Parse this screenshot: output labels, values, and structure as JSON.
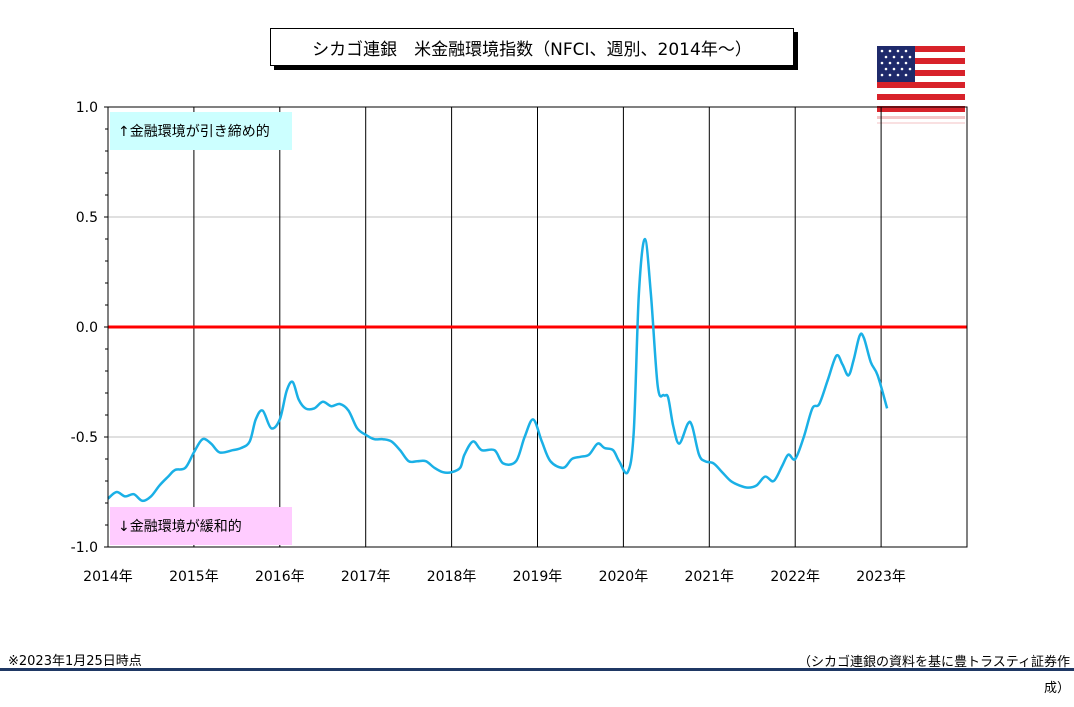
{
  "title": "シカゴ連銀　米金融環境指数（NFCI、週別、2014年～）",
  "annotations": {
    "upper": "↑金融環境が引き締め的",
    "lower": "↓金融環境が緩和的"
  },
  "footnote": "※2023年1月25日時点",
  "source": "（シカゴ連銀の資料を基に豊トラスティ証券作成）",
  "flag_icon": "us-flag-icon",
  "colors": {
    "series": "#1ab0e6",
    "zero_line": "#ff0000"
  },
  "chart_data": {
    "type": "line",
    "title": "シカゴ連銀　米金融環境指数（NFCI、週別、2014年～）",
    "xlim": [
      2014,
      2024
    ],
    "ylim": [
      -1.0,
      1.0
    ],
    "yticks": [
      "1.0",
      "0.5",
      "0.0",
      "-0.5",
      "-1.0"
    ],
    "ytick_values": [
      1.0,
      0.5,
      0.0,
      -0.5,
      -1.0
    ],
    "xticks": [
      "2014年",
      "2015年",
      "2016年",
      "2017年",
      "2018年",
      "2019年",
      "2020年",
      "2021年",
      "2022年",
      "2023年"
    ],
    "xtick_values": [
      2014,
      2015,
      2016,
      2017,
      2018,
      2019,
      2020,
      2021,
      2022,
      2023
    ],
    "grid": true,
    "reference_line": 0.0,
    "series": [
      {
        "points": [
          [
            2014.0,
            -0.78
          ],
          [
            2014.1,
            -0.75
          ],
          [
            2014.2,
            -0.77
          ],
          [
            2014.3,
            -0.76
          ],
          [
            2014.4,
            -0.79
          ],
          [
            2014.5,
            -0.77
          ],
          [
            2014.6,
            -0.72
          ],
          [
            2014.7,
            -0.68
          ],
          [
            2014.78,
            -0.65
          ],
          [
            2014.9,
            -0.64
          ],
          [
            2015.0,
            -0.57
          ],
          [
            2015.1,
            -0.51
          ],
          [
            2015.2,
            -0.53
          ],
          [
            2015.3,
            -0.57
          ],
          [
            2015.45,
            -0.56
          ],
          [
            2015.55,
            -0.55
          ],
          [
            2015.65,
            -0.52
          ],
          [
            2015.72,
            -0.42
          ],
          [
            2015.8,
            -0.38
          ],
          [
            2015.9,
            -0.46
          ],
          [
            2016.0,
            -0.42
          ],
          [
            2016.08,
            -0.29
          ],
          [
            2016.15,
            -0.25
          ],
          [
            2016.22,
            -0.33
          ],
          [
            2016.3,
            -0.37
          ],
          [
            2016.4,
            -0.37
          ],
          [
            2016.5,
            -0.34
          ],
          [
            2016.6,
            -0.36
          ],
          [
            2016.7,
            -0.35
          ],
          [
            2016.8,
            -0.38
          ],
          [
            2016.9,
            -0.46
          ],
          [
            2017.0,
            -0.49
          ],
          [
            2017.1,
            -0.51
          ],
          [
            2017.2,
            -0.51
          ],
          [
            2017.3,
            -0.52
          ],
          [
            2017.4,
            -0.56
          ],
          [
            2017.5,
            -0.61
          ],
          [
            2017.6,
            -0.61
          ],
          [
            2017.7,
            -0.61
          ],
          [
            2017.8,
            -0.64
          ],
          [
            2017.9,
            -0.66
          ],
          [
            2018.0,
            -0.66
          ],
          [
            2018.1,
            -0.64
          ],
          [
            2018.15,
            -0.58
          ],
          [
            2018.25,
            -0.52
          ],
          [
            2018.35,
            -0.56
          ],
          [
            2018.5,
            -0.56
          ],
          [
            2018.6,
            -0.62
          ],
          [
            2018.75,
            -0.61
          ],
          [
            2018.85,
            -0.5
          ],
          [
            2018.95,
            -0.42
          ],
          [
            2019.05,
            -0.52
          ],
          [
            2019.15,
            -0.61
          ],
          [
            2019.3,
            -0.64
          ],
          [
            2019.4,
            -0.6
          ],
          [
            2019.5,
            -0.59
          ],
          [
            2019.6,
            -0.58
          ],
          [
            2019.7,
            -0.53
          ],
          [
            2019.78,
            -0.55
          ],
          [
            2019.88,
            -0.56
          ],
          [
            2019.95,
            -0.61
          ],
          [
            2020.05,
            -0.66
          ],
          [
            2020.12,
            -0.48
          ],
          [
            2020.18,
            0.15
          ],
          [
            2020.25,
            0.4
          ],
          [
            2020.32,
            0.15
          ],
          [
            2020.4,
            -0.27
          ],
          [
            2020.47,
            -0.31
          ],
          [
            2020.52,
            -0.32
          ],
          [
            2020.58,
            -0.45
          ],
          [
            2020.65,
            -0.53
          ],
          [
            2020.75,
            -0.44
          ],
          [
            2020.8,
            -0.45
          ],
          [
            2020.88,
            -0.58
          ],
          [
            2020.95,
            -0.61
          ],
          [
            2021.05,
            -0.62
          ],
          [
            2021.15,
            -0.66
          ],
          [
            2021.25,
            -0.7
          ],
          [
            2021.35,
            -0.72
          ],
          [
            2021.45,
            -0.73
          ],
          [
            2021.55,
            -0.72
          ],
          [
            2021.65,
            -0.68
          ],
          [
            2021.75,
            -0.7
          ],
          [
            2021.85,
            -0.63
          ],
          [
            2021.92,
            -0.58
          ],
          [
            2022.0,
            -0.6
          ],
          [
            2022.1,
            -0.5
          ],
          [
            2022.2,
            -0.37
          ],
          [
            2022.28,
            -0.35
          ],
          [
            2022.38,
            -0.24
          ],
          [
            2022.48,
            -0.13
          ],
          [
            2022.55,
            -0.17
          ],
          [
            2022.62,
            -0.22
          ],
          [
            2022.68,
            -0.15
          ],
          [
            2022.75,
            -0.04
          ],
          [
            2022.8,
            -0.05
          ],
          [
            2022.88,
            -0.16
          ],
          [
            2022.96,
            -0.22
          ],
          [
            2023.07,
            -0.37
          ]
        ]
      }
    ]
  }
}
